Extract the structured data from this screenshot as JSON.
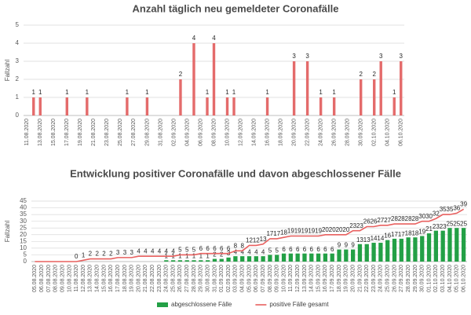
{
  "chart_data": [
    {
      "type": "bar",
      "title": "Anzahl täglich neu gemeldeter Coronafälle",
      "ylabel": "Fallzahl",
      "categories": [
        "11.08.2020",
        null,
        "13.08.2020",
        null,
        "15.08.2020",
        null,
        "17.08.2020",
        null,
        "19.08.2020",
        null,
        "21.08.2020",
        null,
        "23.08.2020",
        null,
        "25.08.2020",
        null,
        "27.08.2020",
        null,
        "29.08.2020",
        null,
        "31.08.2020",
        null,
        "02.09.2020",
        null,
        "04.09.2020",
        null,
        "06.09.2020",
        null,
        "08.09.2020",
        null,
        "10.09.2020",
        null,
        "12.09.2020",
        null,
        "14.09.2020",
        null,
        "16.09.2020",
        null,
        "18.09.2020",
        null,
        "20.09.2020",
        null,
        "22.09.2020",
        null,
        "24.09.2020",
        null,
        "26.09.2020",
        null,
        "28.09.2020",
        null,
        "30.09.2020",
        null,
        "02.10.2020",
        null,
        "04.10.2020",
        null,
        "06.10.2020"
      ],
      "values": [
        0,
        1,
        1,
        0,
        0,
        0,
        1,
        0,
        0,
        1,
        0,
        0,
        0,
        0,
        0,
        1,
        0,
        0,
        1,
        0,
        0,
        0,
        0,
        2,
        0,
        4,
        0,
        1,
        4,
        0,
        1,
        1,
        0,
        0,
        0,
        0,
        1,
        0,
        0,
        0,
        3,
        0,
        3,
        0,
        1,
        0,
        1,
        0,
        0,
        0,
        2,
        0,
        2,
        3,
        0,
        1,
        3
      ],
      "color": "#e46b6b",
      "ylim": [
        0,
        5
      ],
      "yticks": [
        0,
        1,
        2,
        3,
        4,
        5
      ],
      "grid": true
    },
    {
      "type": "combo",
      "title": "Entwicklung positiver Coronafälle und davon abgeschlossener Fälle",
      "ylabel": "Fallzahl",
      "categories": [
        "05.08.2020",
        "06.08.2020",
        "07.08.2020",
        "08.08.2020",
        "09.08.2020",
        "10.08.2020",
        "11.08.2020",
        "12.08.2020",
        "13.08.2020",
        "14.08.2020",
        "15.08.2020",
        "16.08.2020",
        "17.08.2020",
        "18.08.2020",
        "19.08.2020",
        "20.08.2020",
        "21.08.2020",
        "22.08.2020",
        "23.08.2020",
        "24.08.2020",
        "25.08.2020",
        "26.08.2020",
        "27.08.2020",
        "28.08.2020",
        "29.08.2020",
        "30.08.2020",
        "31.08.2020",
        "01.09.2020",
        "02.09.2020",
        "03.09.2020",
        "04.09.2020",
        "05.09.2020",
        "06.09.2020",
        "07.09.2020",
        "08.09.2020",
        "09.09.2020",
        "10.09.2020",
        "11.09.2020",
        "12.09.2020",
        "13.09.2020",
        "14.09.2020",
        "15.09.2020",
        "16.09.2020",
        "17.09.2020",
        "18.09.2020",
        "19.09.2020",
        "20.09.2020",
        "21.09.2020",
        "22.09.2020",
        "23.09.2020",
        "24.09.2020",
        "25.09.2020",
        "26.09.2020",
        "27.09.2020",
        "28.09.2020",
        "29.09.2020",
        "30.09.2020",
        "01.10.2020",
        "02.10.2020",
        "03.10.2020",
        "04.10.2020",
        "05.10.2020",
        "06.10.2020"
      ],
      "series": [
        {
          "name": "abgeschlossene Fälle",
          "type": "bar",
          "color": "#23a046",
          "values": [
            0,
            0,
            0,
            0,
            0,
            0,
            0,
            0,
            0,
            0,
            0,
            0,
            0,
            0,
            0,
            0,
            0,
            0,
            0,
            1,
            1,
            1,
            1,
            1,
            1,
            1,
            2,
            2,
            3,
            4,
            4,
            4,
            4,
            4,
            5,
            5,
            6,
            6,
            6,
            6,
            6,
            6,
            6,
            6,
            9,
            9,
            9,
            13,
            13,
            14,
            14,
            16,
            17,
            17,
            18,
            18,
            19,
            21,
            23,
            23,
            25,
            25,
            25
          ]
        },
        {
          "name": "positive Fälle gesamt",
          "type": "line",
          "color": "#e8605f",
          "values": [
            0,
            0,
            0,
            0,
            0,
            0,
            0,
            1,
            2,
            2,
            2,
            2,
            3,
            3,
            3,
            4,
            4,
            4,
            4,
            4,
            4,
            5,
            5,
            5,
            6,
            6,
            6,
            6,
            6,
            8,
            8,
            12,
            12,
            13,
            17,
            17,
            18,
            19,
            19,
            19,
            19,
            19,
            20,
            20,
            20,
            20,
            23,
            23,
            26,
            26,
            27,
            27,
            28,
            28,
            28,
            28,
            30,
            30,
            32,
            35,
            35,
            36,
            39
          ],
          "value_labels": [
            null,
            null,
            null,
            null,
            null,
            null,
            "0",
            "1",
            "2",
            "2",
            "2",
            "2",
            "3",
            "3",
            "3",
            "4",
            "4",
            "4",
            "4",
            "4",
            "4",
            "5",
            "5",
            "5",
            "6",
            "6",
            "6",
            "6",
            "6",
            "8",
            "8",
            "12",
            "12",
            "13",
            "17",
            "17",
            "18",
            "19",
            "19",
            "19",
            "19",
            "19",
            "20",
            "20",
            "20",
            "20",
            "23",
            "23",
            "26",
            "26",
            "27",
            "27",
            "28",
            "28",
            "28",
            "28",
            "30",
            "30",
            "32",
            "35",
            "35",
            "36",
            "39"
          ]
        }
      ],
      "ylim": [
        0,
        45
      ],
      "yticks": [
        0,
        5,
        10,
        15,
        20,
        25,
        30,
        35,
        40,
        45
      ],
      "grid": true,
      "legend": "bottom"
    }
  ]
}
